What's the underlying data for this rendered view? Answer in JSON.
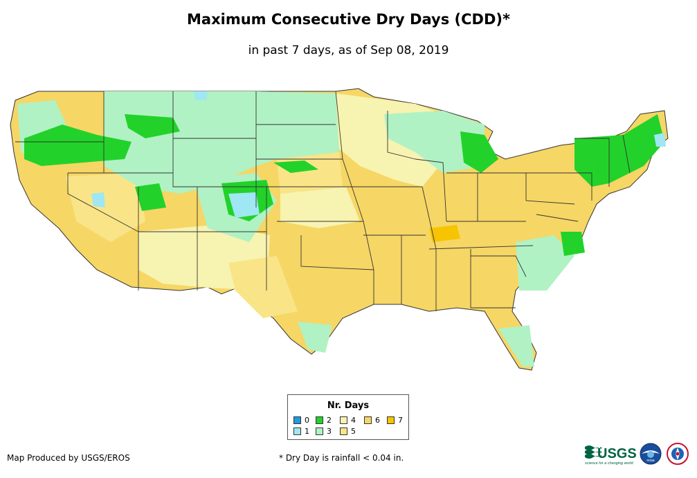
{
  "header": {
    "title": "Maximum Consecutive Dry Days (CDD)*",
    "subtitle": "in past 7 days, as of Sep 08, 2019"
  },
  "map": {
    "region": "Contiguous United States",
    "category_colors": {
      "0": "#1f9be0",
      "1": "#9ee7f3",
      "2": "#22d22a",
      "3": "#b0f2c4",
      "4": "#f7f3b0",
      "5": "#f9e588",
      "6": "#f6d665",
      "7": "#f6c400"
    },
    "state_border_color": "#333333"
  },
  "legend": {
    "title": "Nr. Days",
    "items": [
      {
        "label": "0",
        "color": "#1f9be0"
      },
      {
        "label": "1",
        "color": "#9ee7f3"
      },
      {
        "label": "2",
        "color": "#22d22a"
      },
      {
        "label": "3",
        "color": "#b0f2c4"
      },
      {
        "label": "4",
        "color": "#f7f3b0"
      },
      {
        "label": "5",
        "color": "#f9e588"
      },
      {
        "label": "6",
        "color": "#f6d665"
      },
      {
        "label": "7",
        "color": "#f6c400"
      }
    ]
  },
  "footer": {
    "credit": "Map Produced by USGS/EROS",
    "footnote": "* Dry Day is rainfall < 0.04 in."
  },
  "logos": {
    "usgs": "USGS",
    "usgs_tagline": "science for a changing world",
    "noaa": "noaa",
    "nws_icon": "nws-logo"
  }
}
